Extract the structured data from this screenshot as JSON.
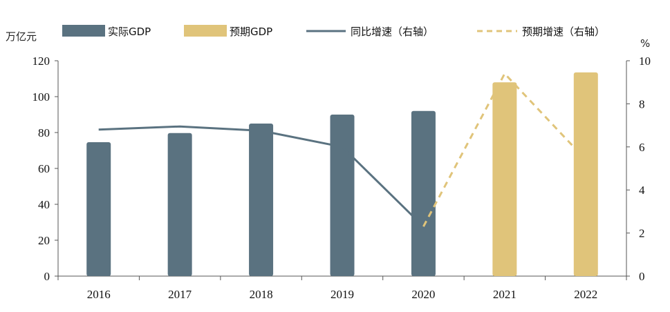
{
  "chart_data": {
    "type": "bar",
    "categories": [
      "2016",
      "2017",
      "2018",
      "2019",
      "2020",
      "2021",
      "2022"
    ],
    "series": [
      {
        "name": "实际GDP",
        "kind": "bar",
        "axis": "left",
        "color": "#5a7280",
        "values": [
          74.6,
          79.7,
          85.0,
          90.0,
          92.0,
          null,
          null
        ]
      },
      {
        "name": "预期GDP",
        "kind": "bar",
        "axis": "left",
        "color": "#e0c47a",
        "values": [
          null,
          null,
          null,
          null,
          null,
          108.0,
          113.5
        ]
      },
      {
        "name": "同比增速（右轴）",
        "kind": "line",
        "axis": "right",
        "color": "#5a7280",
        "dash": false,
        "values": [
          6.8,
          6.95,
          6.75,
          6.0,
          2.3,
          null,
          null
        ]
      },
      {
        "name": "预期增速（右轴）",
        "kind": "line",
        "axis": "right",
        "color": "#e0c47a",
        "dash": true,
        "values": [
          null,
          null,
          null,
          null,
          2.3,
          9.4,
          5.4
        ]
      }
    ],
    "ylabel": "万亿元",
    "ylabel_right": "%",
    "ylim": [
      0,
      120
    ],
    "ylim_right": [
      0,
      10
    ],
    "yticks": [
      "0",
      "20",
      "40",
      "60",
      "80",
      "100",
      "120"
    ],
    "yticks_right": [
      "0",
      "2",
      "4",
      "6",
      "8",
      "10"
    ],
    "legend_position": "top",
    "grid": false
  }
}
